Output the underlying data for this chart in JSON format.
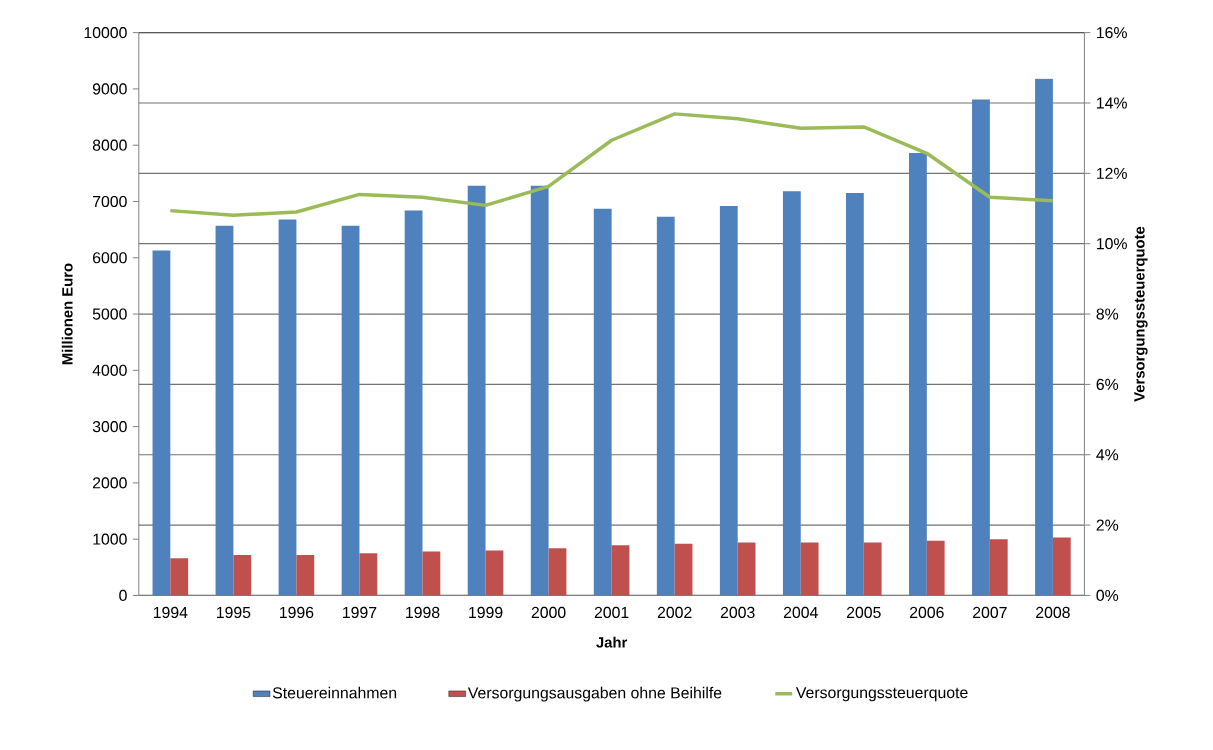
{
  "chart_data": {
    "type": "bar",
    "xlabel": "Jahr",
    "ylabel": "Millionen Euro",
    "y2label": "Versorgungssteuerquote",
    "categories": [
      "1994",
      "1995",
      "1996",
      "1997",
      "1998",
      "1999",
      "2000",
      "2001",
      "2002",
      "2003",
      "2004",
      "2005",
      "2006",
      "2007",
      "2008"
    ],
    "series": [
      {
        "name": "Steuereinnahmen",
        "color": "#4f81bd",
        "values": [
          6130,
          6570,
          6680,
          6570,
          6840,
          7280,
          7280,
          6870,
          6730,
          6920,
          7180,
          7150,
          7860,
          8810,
          9180
        ]
      },
      {
        "name": "Versorgungsausgaben ohne Beihilfe",
        "color": "#c0504d",
        "values": [
          660,
          720,
          720,
          750,
          780,
          800,
          840,
          890,
          920,
          940,
          940,
          940,
          970,
          1000,
          1030
        ]
      },
      {
        "name": "Versorgungssteuerquote",
        "type": "line",
        "axis": "y2",
        "color": "#9bbb59",
        "values": [
          10.94,
          10.81,
          10.9,
          11.4,
          11.32,
          11.09,
          11.63,
          12.94,
          13.69,
          13.55,
          13.28,
          13.32,
          12.57,
          11.32,
          11.22
        ]
      }
    ],
    "ylim": [
      0,
      10000
    ],
    "yticks": [
      0,
      1000,
      2000,
      3000,
      4000,
      5000,
      6000,
      7000,
      8000,
      9000,
      10000
    ],
    "y2lim": [
      0,
      16
    ],
    "y2ticks": [
      {
        "value": 0,
        "label": "0%"
      },
      {
        "value": 2,
        "label": "2%"
      },
      {
        "value": 4,
        "label": "4%"
      },
      {
        "value": 6,
        "label": "6%"
      },
      {
        "value": 8,
        "label": "8%"
      },
      {
        "value": 10,
        "label": "10%"
      },
      {
        "value": 12,
        "label": "12%"
      },
      {
        "value": 14,
        "label": "14%"
      },
      {
        "value": 16,
        "label": "16%"
      }
    ],
    "grid": true,
    "legend": "bottom",
    "marker": "none",
    "line_style": "solid"
  }
}
